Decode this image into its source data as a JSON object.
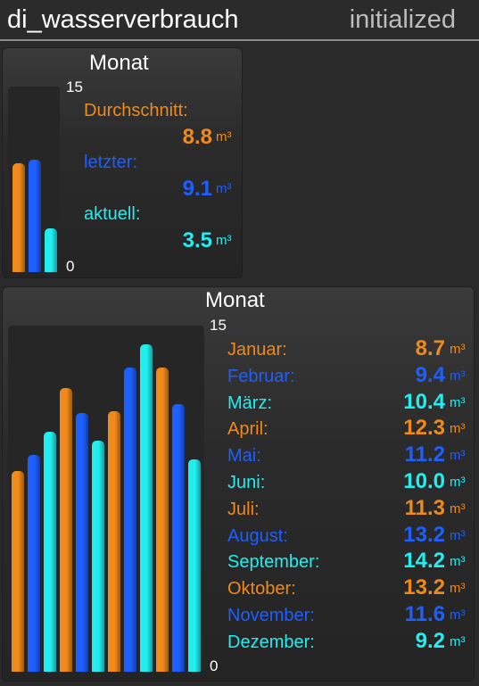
{
  "header": {
    "title": "di_wasserverbrauch",
    "status": "initialized"
  },
  "colors": {
    "orange": "#f08a1a",
    "blue": "#1e5fff",
    "cyan": "#22eef0"
  },
  "summary": {
    "title": "Monat",
    "axis_max": "15",
    "axis_min": "0",
    "unit": "m³",
    "stats": [
      {
        "label": "Durchschnitt:",
        "value": "8.8",
        "num": 8.8,
        "color": "orange"
      },
      {
        "label": "letzter:",
        "value": "9.1",
        "num": 9.1,
        "color": "blue"
      },
      {
        "label": "aktuell:",
        "value": "3.5",
        "num": 3.5,
        "color": "cyan"
      }
    ]
  },
  "monthly": {
    "title": "Monat",
    "axis_max": "15",
    "axis_min": "0",
    "unit": "m³",
    "months": [
      {
        "label": "Januar:",
        "value": "8.7",
        "num": 8.7,
        "color": "orange"
      },
      {
        "label": "Februar:",
        "value": "9.4",
        "num": 9.4,
        "color": "blue"
      },
      {
        "label": "März:",
        "value": "10.4",
        "num": 10.4,
        "color": "cyan"
      },
      {
        "label": "April:",
        "value": "12.3",
        "num": 12.3,
        "color": "orange"
      },
      {
        "label": "Mai:",
        "value": "11.2",
        "num": 11.2,
        "color": "blue"
      },
      {
        "label": "Juni:",
        "value": "10.0",
        "num": 10.0,
        "color": "cyan"
      },
      {
        "label": "Juli:",
        "value": "11.3",
        "num": 11.3,
        "color": "orange"
      },
      {
        "label": "August:",
        "value": "13.2",
        "num": 13.2,
        "color": "blue"
      },
      {
        "label": "September:",
        "value": "14.2",
        "num": 14.2,
        "color": "cyan"
      },
      {
        "label": "Oktober:",
        "value": "13.2",
        "num": 13.2,
        "color": "orange"
      },
      {
        "label": "November:",
        "value": "11.6",
        "num": 11.6,
        "color": "blue"
      },
      {
        "label": "Dezember:",
        "value": "9.2",
        "num": 9.2,
        "color": "cyan"
      }
    ]
  }
}
